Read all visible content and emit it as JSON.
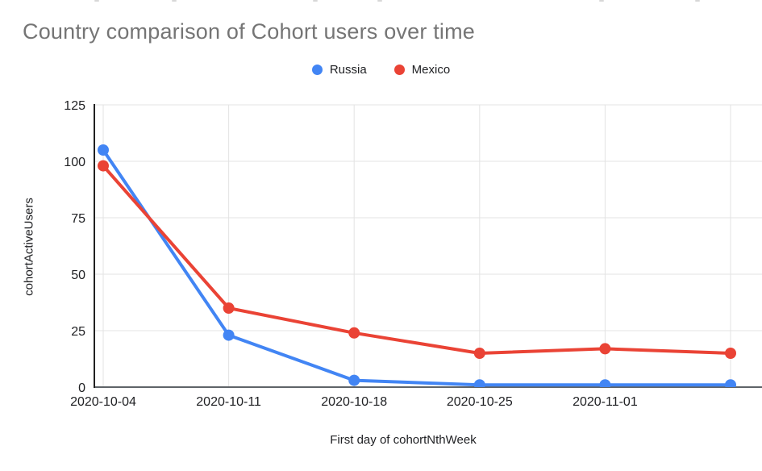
{
  "chart_data": {
    "type": "line",
    "title": "Country comparison of Cohort users over time",
    "xlabel": "First day of cohortNthWeek",
    "ylabel": "cohortActiveUsers",
    "categories": [
      "2020-10-04",
      "2020-10-11",
      "2020-10-18",
      "2020-10-25",
      "2020-11-01",
      ""
    ],
    "series": [
      {
        "name": "Russia",
        "color": "#4285F4",
        "values": [
          105,
          23,
          3,
          1,
          1,
          1
        ]
      },
      {
        "name": "Mexico",
        "color": "#EA4335",
        "values": [
          98,
          35,
          24,
          15,
          17,
          15
        ]
      }
    ],
    "ylim": [
      0,
      125
    ],
    "yticks": [
      0,
      25,
      50,
      75,
      100,
      125
    ],
    "grid": true,
    "legend_position": "top",
    "colors": {
      "title": "#757575",
      "grid": "#e3e3e3",
      "y_axis_line": "#212121",
      "x_axis_line": "#5f6368",
      "tick_label": "#202124"
    }
  }
}
